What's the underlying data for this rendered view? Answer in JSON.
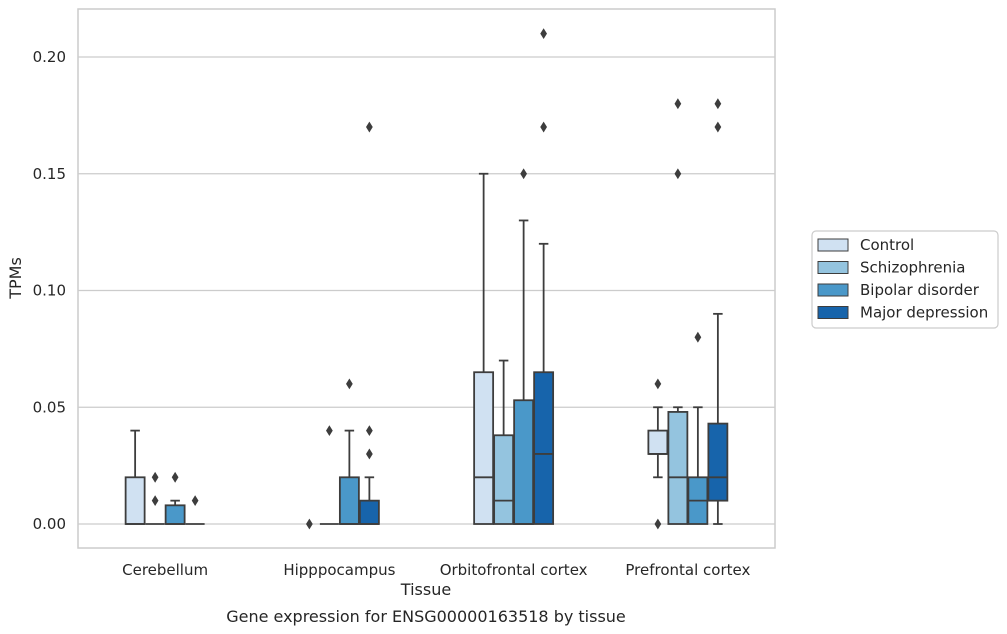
{
  "chart_data": {
    "type": "box",
    "xlabel": "Tissue",
    "ylabel": "TPMs",
    "caption": "Gene expression for ENSG00000163518 by tissue",
    "ylim": [
      -0.01,
      0.22
    ],
    "yticks": [
      "0.00",
      "0.05",
      "0.10",
      "0.15",
      "0.20"
    ],
    "ytick_values": [
      0,
      0.05,
      0.1,
      0.15,
      0.2
    ],
    "grid": true,
    "legend_position": "right",
    "categories": [
      "Cerebellum",
      "Hipppocampus",
      "Orbitofrontal cortex",
      "Prefrontal cortex"
    ],
    "series": [
      {
        "name": "Control",
        "color": "#d0e1f2",
        "boxes": [
          {
            "whislo": 0,
            "q1": 0,
            "med": 0,
            "q3": 0.02,
            "whishi": 0.04,
            "fliers": []
          },
          null,
          {
            "whislo": 0,
            "q1": 0,
            "med": 0.02,
            "q3": 0.065,
            "whishi": 0.15,
            "fliers": []
          },
          {
            "whislo": 0.02,
            "q1": 0.03,
            "med": 0.03,
            "q3": 0.04,
            "whishi": 0.05,
            "fliers": [
              0.06,
              0.0
            ]
          }
        ]
      },
      {
        "name": "Schizophrenia",
        "color": "#94c4df",
        "boxes": [
          {
            "whislo": 0,
            "q1": 0,
            "med": 0,
            "q3": 0,
            "whishi": 0,
            "fliers": [
              0.02,
              0.01
            ]
          },
          {
            "whislo": 0,
            "q1": 0,
            "med": 0,
            "q3": 0,
            "whishi": 0,
            "fliers": [
              0.04
            ]
          },
          {
            "whislo": 0,
            "q1": 0,
            "med": 0.01,
            "q3": 0.038,
            "whishi": 0.07,
            "fliers": []
          },
          {
            "whislo": 0,
            "q1": 0,
            "med": 0.02,
            "q3": 0.048,
            "whishi": 0.05,
            "fliers": [
              0.18,
              0.15
            ]
          }
        ]
      },
      {
        "name": "Bipolar disorder",
        "color": "#4a98c9",
        "boxes": [
          {
            "whislo": 0,
            "q1": 0,
            "med": 0,
            "q3": 0.008,
            "whishi": 0.01,
            "fliers": [
              0.02
            ]
          },
          {
            "whislo": 0,
            "q1": 0,
            "med": 0,
            "q3": 0.02,
            "whishi": 0.04,
            "fliers": [
              0.06
            ]
          },
          {
            "whislo": 0,
            "q1": 0,
            "med": 0,
            "q3": 0.053,
            "whishi": 0.13,
            "fliers": [
              0.15
            ]
          },
          {
            "whislo": 0,
            "q1": 0,
            "med": 0.01,
            "q3": 0.02,
            "whishi": 0.05,
            "fliers": [
              0.08
            ]
          }
        ]
      },
      {
        "name": "Major depression",
        "color": "#1764ab",
        "boxes": [
          {
            "whislo": 0,
            "q1": 0,
            "med": 0,
            "q3": 0,
            "whishi": 0,
            "fliers": [
              0.01
            ]
          },
          {
            "whislo": 0,
            "q1": 0,
            "med": 0,
            "q3": 0.01,
            "whishi": 0.02,
            "fliers": [
              0.04,
              0.03,
              0.17
            ]
          },
          {
            "whislo": 0,
            "q1": 0,
            "med": 0.03,
            "q3": 0.065,
            "whishi": 0.12,
            "fliers": [
              0.21,
              0.17
            ]
          },
          {
            "whislo": 0,
            "q1": 0.01,
            "med": 0.02,
            "q3": 0.043,
            "whishi": 0.09,
            "fliers": [
              0.18,
              0.17
            ]
          }
        ]
      }
    ],
    "extra_fliers": [
      {
        "category": 1,
        "series": 0,
        "values": [
          0.0
        ]
      }
    ]
  }
}
